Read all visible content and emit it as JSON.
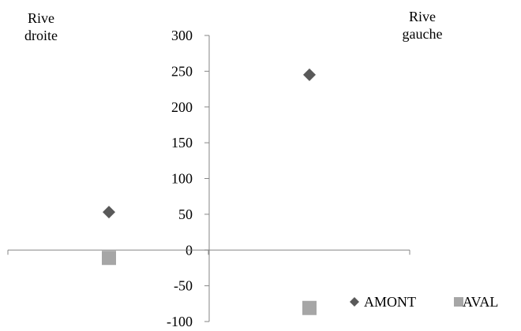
{
  "chart_data": {
    "type": "scatter",
    "title": "",
    "xlabel": "",
    "ylabel": "",
    "ylim": [
      -100,
      300
    ],
    "yticks": [
      300,
      250,
      200,
      150,
      100,
      50,
      0,
      -50,
      -100
    ],
    "x_categories": 2,
    "side_labels": {
      "left": [
        "Rive",
        "droite"
      ],
      "right": [
        "Rive",
        "gauche"
      ]
    },
    "series": [
      {
        "name": "AMONT",
        "marker": "diamond",
        "color": "#595959",
        "points": [
          {
            "x": 1,
            "y": 53
          },
          {
            "x": 2,
            "y": 245
          }
        ]
      },
      {
        "name": "AVAL",
        "marker": "square",
        "color": "#a6a6a6",
        "points": [
          {
            "x": 1,
            "y": -11
          },
          {
            "x": 2,
            "y": -81
          }
        ]
      }
    ],
    "legend": {
      "position": "bottom-right"
    },
    "grid": false
  }
}
